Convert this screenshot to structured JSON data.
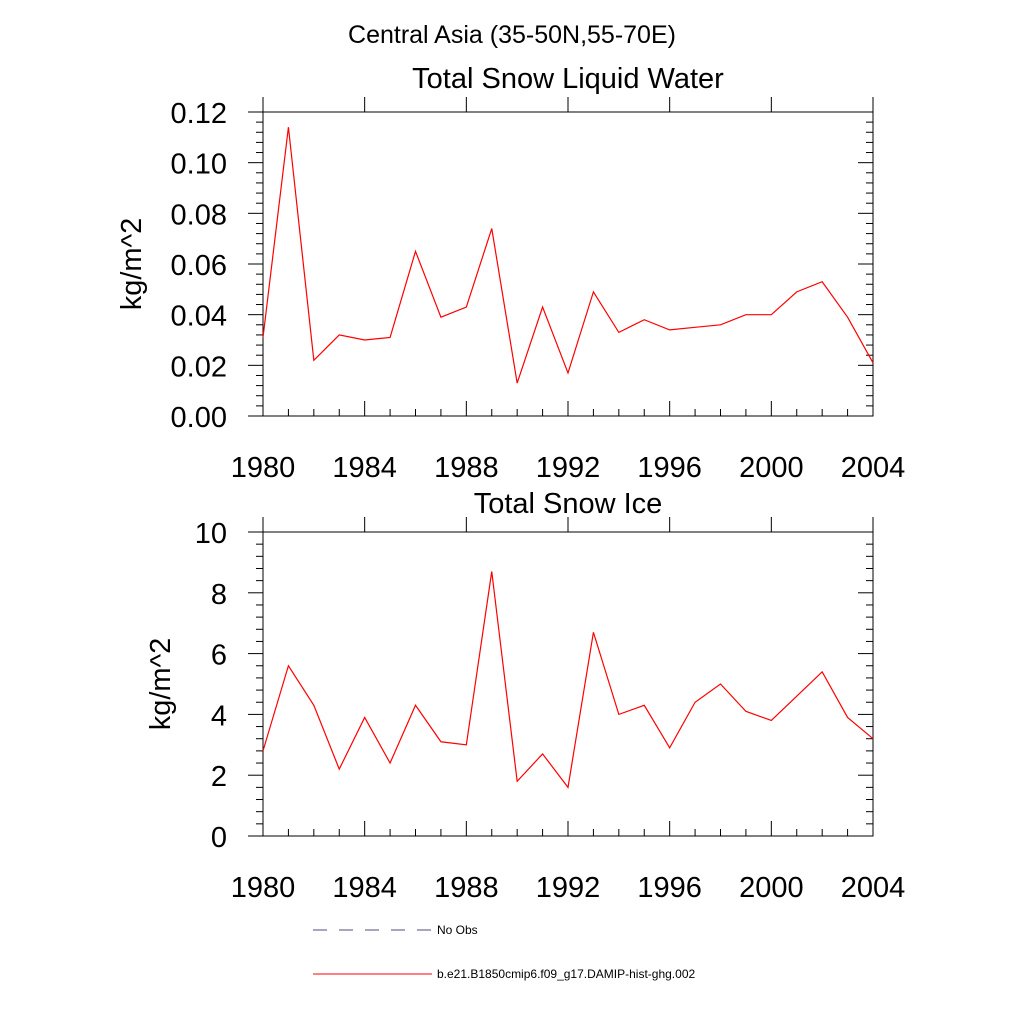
{
  "figure": {
    "super_title": "Central Asia (35-50N,55-70E)"
  },
  "chart_data": [
    {
      "type": "line",
      "title": "Total Snow Liquid Water",
      "xlabel": "",
      "ylabel": "kg/m^2",
      "xlim": [
        1980,
        2004
      ],
      "ylim": [
        0,
        0.12
      ],
      "xticks": [
        1980,
        1984,
        1988,
        1992,
        1996,
        2000,
        2004
      ],
      "xtick_labels": [
        "1980",
        "1984",
        "1988",
        "1992",
        "1996",
        "2000",
        "2004"
      ],
      "yticks": [
        0,
        0.02,
        0.04,
        0.06,
        0.08,
        0.1,
        0.12
      ],
      "ytick_labels": [
        "0.00",
        "0.02",
        "0.04",
        "0.06",
        "0.08",
        "0.10",
        "0.12"
      ],
      "grid": false,
      "series": [
        {
          "name": "b.e21.B1850cmip6.f09_g17.DAMIP-hist-ghg.002",
          "color": "#ff0000",
          "x": [
            1980,
            1981,
            1982,
            1983,
            1984,
            1985,
            1986,
            1987,
            1988,
            1989,
            1990,
            1991,
            1992,
            1993,
            1994,
            1995,
            1996,
            1997,
            1998,
            1999,
            2000,
            2001,
            2002,
            2003,
            2004
          ],
          "y": [
            0.031,
            0.114,
            0.022,
            0.032,
            0.03,
            0.031,
            0.065,
            0.039,
            0.043,
            0.074,
            0.013,
            0.043,
            0.017,
            0.049,
            0.033,
            0.038,
            0.034,
            0.035,
            0.036,
            0.04,
            0.04,
            0.049,
            0.053,
            0.039,
            0.021
          ]
        }
      ]
    },
    {
      "type": "line",
      "title": "Total Snow Ice",
      "xlabel": "",
      "ylabel": "kg/m^2",
      "xlim": [
        1980,
        2004
      ],
      "ylim": [
        0,
        10
      ],
      "xticks": [
        1980,
        1984,
        1988,
        1992,
        1996,
        2000,
        2004
      ],
      "xtick_labels": [
        "1980",
        "1984",
        "1988",
        "1992",
        "1996",
        "2000",
        "2004"
      ],
      "yticks": [
        0,
        2,
        4,
        6,
        8,
        10
      ],
      "ytick_labels": [
        "0",
        "2",
        "4",
        "6",
        "8",
        "10"
      ],
      "grid": false,
      "series": [
        {
          "name": "b.e21.B1850cmip6.f09_g17.DAMIP-hist-ghg.002",
          "color": "#ff0000",
          "x": [
            1980,
            1981,
            1982,
            1983,
            1984,
            1985,
            1986,
            1987,
            1988,
            1989,
            1990,
            1991,
            1992,
            1993,
            1994,
            1995,
            1996,
            1997,
            1998,
            1999,
            2000,
            2001,
            2002,
            2003,
            2004
          ],
          "y": [
            2.8,
            5.6,
            4.3,
            2.2,
            3.9,
            2.4,
            4.3,
            3.1,
            3.0,
            8.7,
            1.8,
            2.7,
            1.6,
            6.7,
            4.0,
            4.3,
            2.9,
            4.4,
            5.0,
            4.1,
            3.8,
            4.6,
            5.4,
            3.9,
            3.2
          ]
        }
      ]
    }
  ],
  "legend": {
    "placement": "bottom",
    "items": [
      {
        "label": "No Obs",
        "color": "#4c4c7a",
        "style": "dashed"
      },
      {
        "label": "b.e21.B1850cmip6.f09_g17.DAMIP-hist-ghg.002",
        "color": "#ff0000",
        "style": "solid"
      }
    ]
  }
}
